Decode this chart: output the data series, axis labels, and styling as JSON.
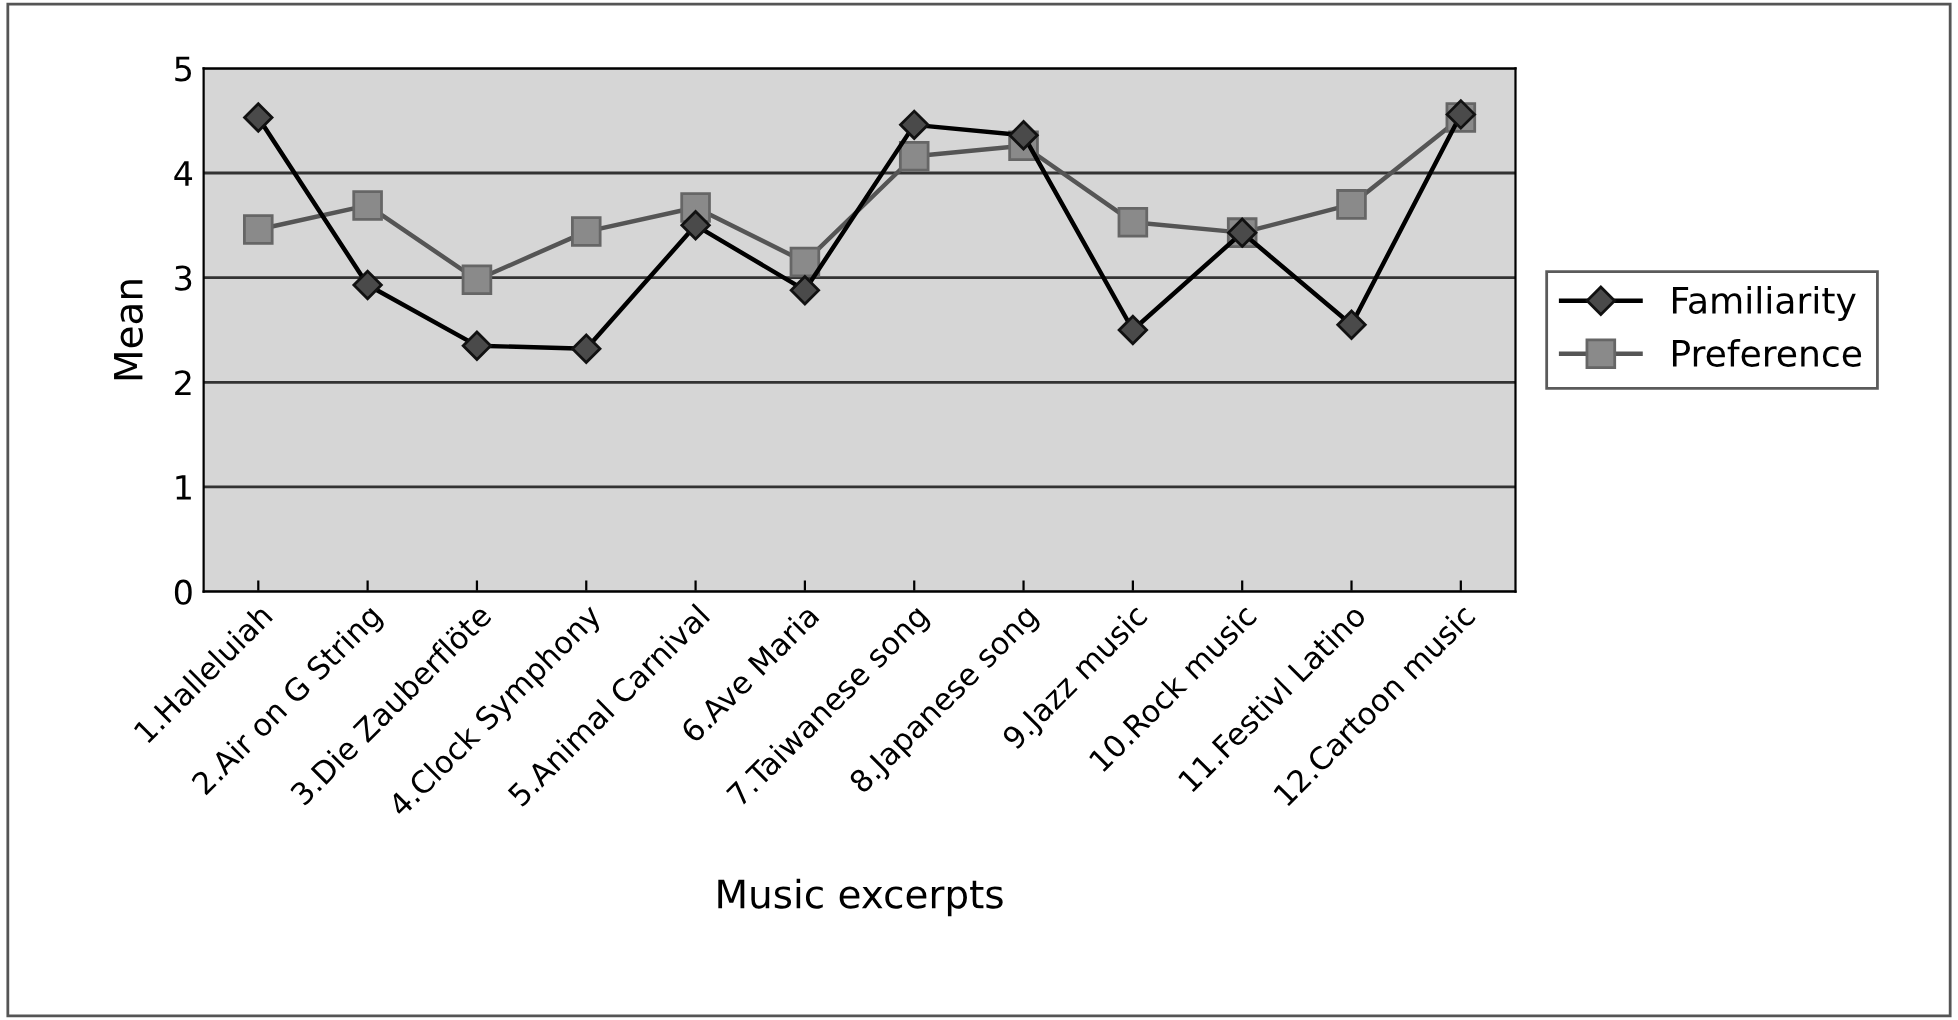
{
  "chart_data": {
    "type": "line",
    "xlabel": "Music excerpts",
    "ylabel": "Mean",
    "categories": [
      "1.Halleluiah",
      "2.Air on G String",
      "3.Die Zauberflöte",
      "4.Clock Symphony",
      "5.Animal Carnival",
      "6.Ave Maria",
      "7.Taiwanese song",
      "8.Japanese song",
      "9.Jazz music",
      "10.Rock music",
      "11.Festivl Latino",
      "12.Cartoon music"
    ],
    "series": [
      {
        "name": "Familiarity",
        "color": "#4a4a4a",
        "marker": "diamond",
        "values": [
          4.53,
          2.93,
          2.35,
          2.32,
          3.5,
          2.88,
          4.46,
          4.36,
          2.5,
          3.43,
          2.55,
          4.56
        ]
      },
      {
        "name": "Preference",
        "color": "#8a8a8a",
        "marker": "square",
        "values": [
          3.46,
          3.69,
          2.98,
          3.44,
          3.67,
          3.15,
          4.16,
          4.26,
          3.53,
          3.43,
          3.7,
          4.53
        ]
      }
    ],
    "ylim": [
      0,
      5
    ],
    "yticks": [
      0,
      1,
      2,
      3,
      4,
      5
    ],
    "grid": "y",
    "legend": "right"
  }
}
